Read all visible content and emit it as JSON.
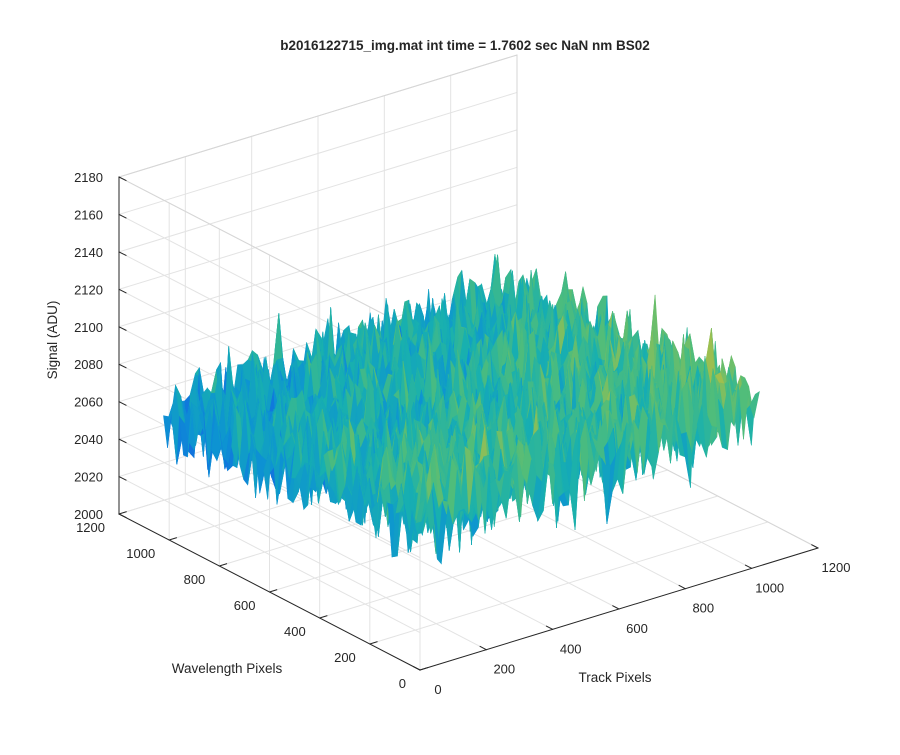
{
  "chart_data": {
    "type": "surface",
    "title": "b2016122715_img.mat int time = 1.7602 sec  NaN nm BS02",
    "xlabel": "Track Pixels",
    "ylabel": "Wavelength Pixels",
    "zlabel": "Signal (ADU)",
    "xlim": [
      0,
      1200
    ],
    "ylim": [
      0,
      1200
    ],
    "zlim": [
      2000,
      2180
    ],
    "x_ticks": [
      0,
      200,
      400,
      600,
      800,
      1000,
      1200
    ],
    "y_ticks": [
      0,
      200,
      400,
      600,
      800,
      1000,
      1200
    ],
    "z_ticks": [
      2000,
      2020,
      2040,
      2060,
      2080,
      2100,
      2120,
      2140,
      2160,
      2180
    ],
    "x_tick_labels": [
      "0",
      "200",
      "400",
      "600",
      "800",
      "1000",
      "1200"
    ],
    "y_tick_labels": [
      "0",
      "200",
      "400",
      "600",
      "800",
      "1000",
      "1200"
    ],
    "z_tick_labels": [
      "2000",
      "2020",
      "2040",
      "2060",
      "2080",
      "2100",
      "2120",
      "2140",
      "2160",
      "2180"
    ],
    "data_extent": {
      "x": [
        1,
        1024
      ],
      "y": [
        1,
        1024
      ]
    },
    "mean_signal_surface": {
      "x": [
        0,
        512,
        1024
      ],
      "y": [
        0,
        512,
        1024
      ],
      "z": [
        [
          2080,
          2082,
          2088
        ],
        [
          2072,
          2076,
          2083
        ],
        [
          2064,
          2068,
          2074
        ]
      ]
    },
    "noise_amplitude_adu": 18,
    "grid": true,
    "box": "back-planes",
    "colormap": "parula",
    "view": {
      "azimuth": -37.5,
      "elevation": 30
    }
  }
}
